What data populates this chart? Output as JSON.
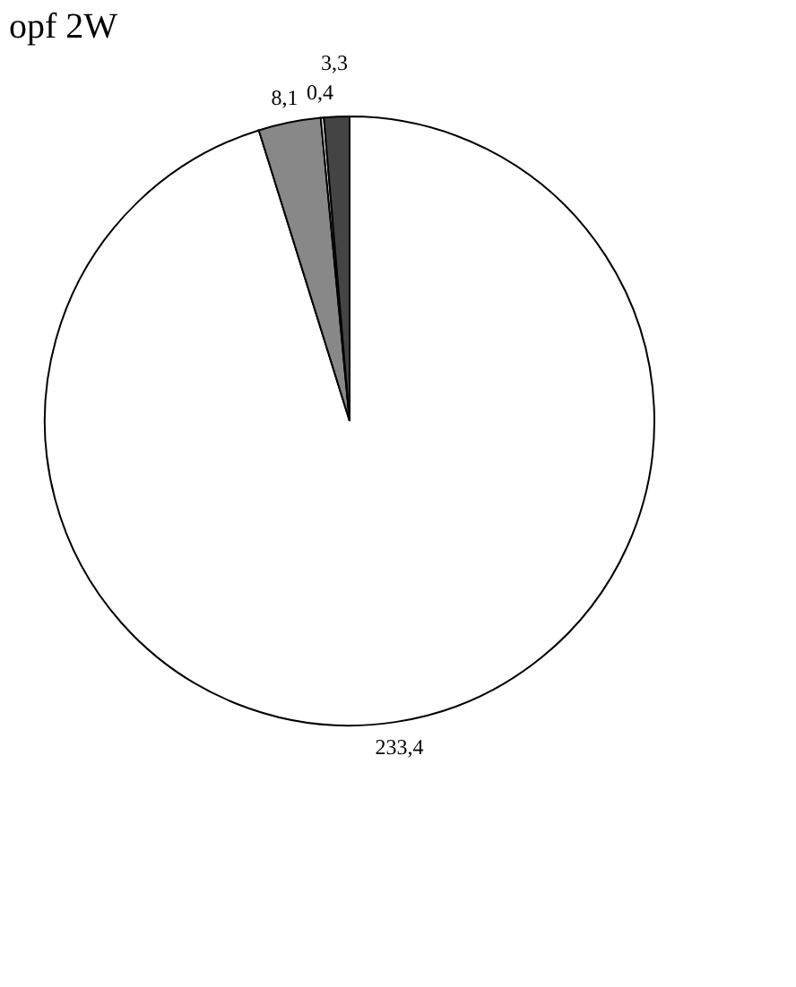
{
  "chart_data": {
    "type": "pie",
    "title": "opf 2W",
    "categories": [
      null,
      null,
      null,
      null
    ],
    "values": [
      233.4,
      8.1,
      0.4,
      3.3
    ],
    "value_labels": [
      "233,4",
      "8,1",
      "0,4",
      "3,3"
    ],
    "colors": [
      "#ffffff",
      "#888888",
      "#ffffff",
      "#444444"
    ],
    "legend": false
  }
}
